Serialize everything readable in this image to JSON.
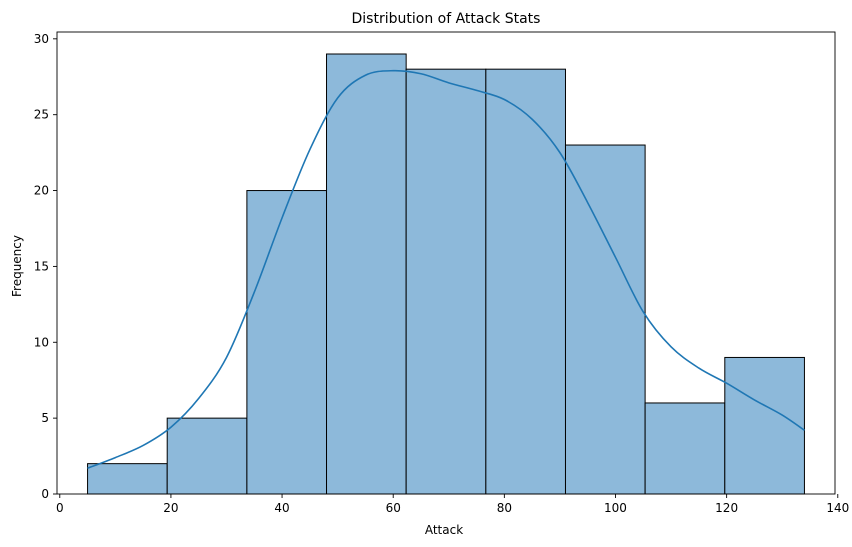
{
  "chart_data": {
    "type": "bar",
    "title": "Distribution of Attack Stats",
    "xlabel": "Attack",
    "ylabel": "Frequency",
    "xlim": [
      -0.5,
      139.5
    ],
    "ylim": [
      0,
      30.45
    ],
    "xticks": [
      0,
      20,
      40,
      60,
      80,
      100,
      120,
      140
    ],
    "yticks": [
      0,
      5,
      10,
      15,
      20,
      25,
      30
    ],
    "bin_edges": [
      5,
      19.33,
      33.67,
      48,
      62.33,
      76.67,
      91,
      105.33,
      119.67,
      134
    ],
    "values": [
      2,
      5,
      20,
      29,
      28,
      28,
      23,
      6,
      9
    ],
    "bar_color": "#8db9da",
    "kde": {
      "color": "#1f77b4",
      "x": [
        5,
        10,
        15,
        20,
        25,
        30,
        35,
        40,
        45,
        50,
        55,
        60,
        65,
        70,
        75,
        80,
        85,
        90,
        95,
        100,
        105,
        110,
        115,
        120,
        125,
        130,
        134
      ],
      "y": [
        1.7,
        2.4,
        3.2,
        4.4,
        6.3,
        9.0,
        13.3,
        18.2,
        22.7,
        26.1,
        27.6,
        27.9,
        27.7,
        27.1,
        26.6,
        26.0,
        24.7,
        22.5,
        19.2,
        15.6,
        12.0,
        9.7,
        8.3,
        7.3,
        6.2,
        5.2,
        4.2
      ]
    }
  }
}
